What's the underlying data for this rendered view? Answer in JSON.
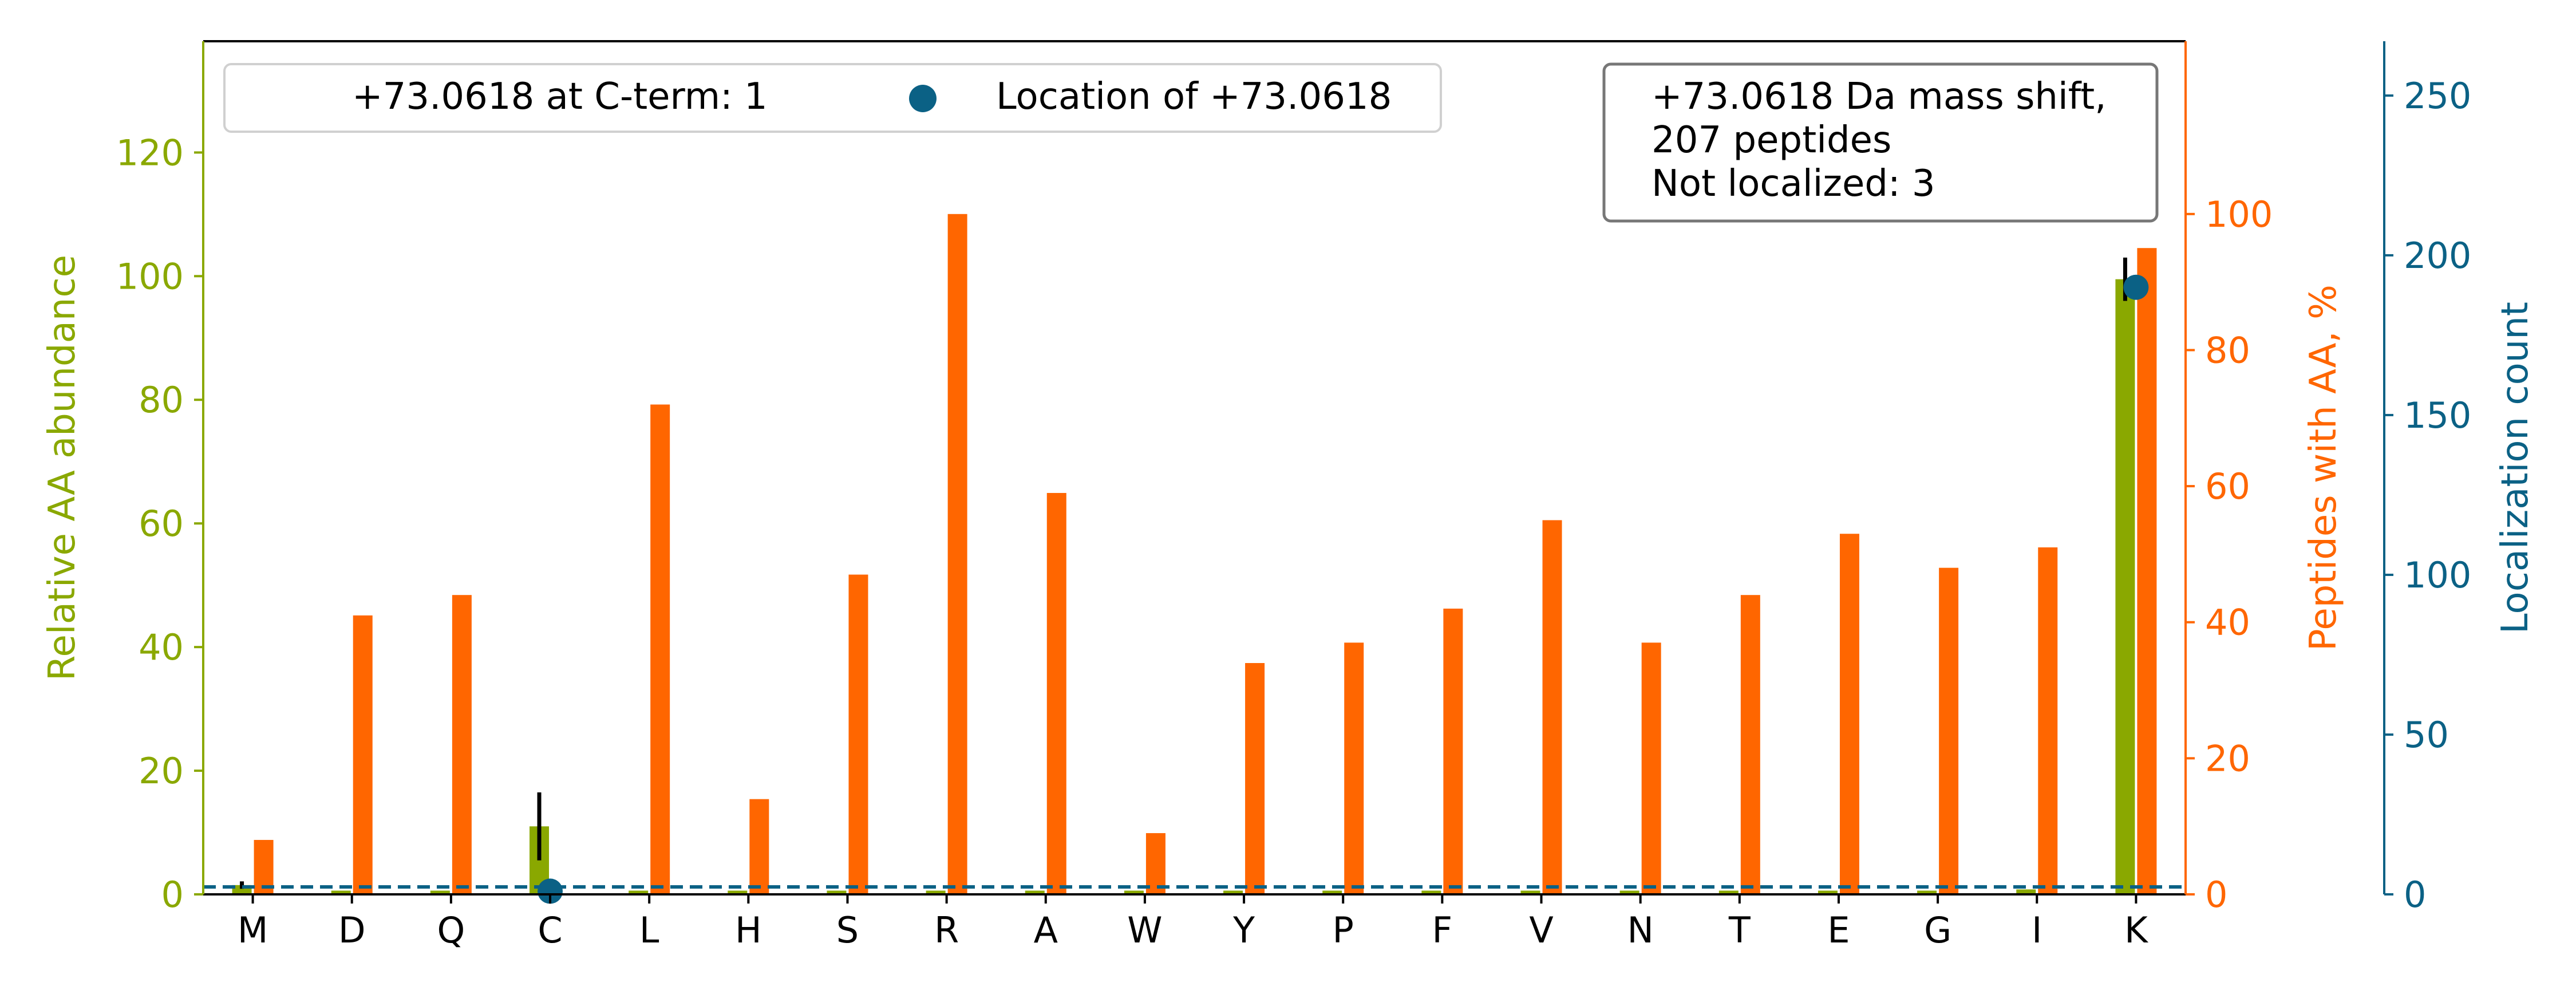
{
  "chart_data": {
    "type": "bar",
    "categories": [
      "M",
      "D",
      "Q",
      "C",
      "L",
      "H",
      "S",
      "R",
      "A",
      "W",
      "Y",
      "P",
      "F",
      "V",
      "N",
      "T",
      "E",
      "G",
      "I",
      "K"
    ],
    "left_axis": {
      "label": "Relative AA abundance",
      "ylim": [
        0,
        138
      ],
      "ticks": [
        0,
        20,
        40,
        60,
        80,
        100,
        120
      ],
      "color": "#8aa800"
    },
    "right_axis": {
      "label": "Peptides with AA, %",
      "ylim": [
        0,
        125.4
      ],
      "ticks": [
        0,
        20,
        40,
        60,
        80,
        100
      ],
      "color": "#ff6600"
    },
    "far_right_axis": {
      "label": "Localization count",
      "ylim": [
        0,
        267
      ],
      "ticks": [
        0,
        50,
        100,
        150,
        200,
        250
      ],
      "color": "#0b6185"
    },
    "series": [
      {
        "name": "",
        "axis": "left",
        "color": "#8aa800",
        "values": [
          1.5,
          0.6,
          0.6,
          11,
          0.6,
          0.6,
          0.6,
          0.6,
          0.6,
          0.6,
          0.6,
          0.6,
          0.6,
          0.6,
          0.6,
          0.6,
          0.6,
          0.6,
          0.8,
          99.5
        ],
        "errors": [
          0.6,
          0,
          0,
          5.5,
          0,
          0,
          0,
          0,
          0,
          0,
          0,
          0,
          0,
          0,
          0,
          0,
          0,
          0,
          0,
          3.5
        ]
      },
      {
        "name": "",
        "axis": "right",
        "color": "#ff6600",
        "values": [
          8,
          41,
          44,
          0,
          72,
          14,
          47,
          100,
          59,
          9,
          34,
          37,
          42,
          55,
          37,
          44,
          53,
          48,
          51,
          95
        ]
      },
      {
        "name": "Location of +73.0618",
        "axis": "far_right",
        "color": "#0b6185",
        "type": "scatter",
        "points": [
          {
            "category": "C",
            "value": 1
          },
          {
            "category": "K",
            "value": 190
          }
        ]
      }
    ],
    "reference_line": {
      "axis": "left",
      "value": 1.2,
      "style": "dashed",
      "color": "#0b6185"
    },
    "legend": {
      "placement": "top-left",
      "entries": [
        {
          "label": "+73.0618 at C-term: 1",
          "marker": "none"
        },
        {
          "label": "Location of +73.0618",
          "marker": "circle",
          "color": "#0b6185"
        }
      ]
    },
    "info_box": {
      "placement": "top-right",
      "lines": [
        "+73.0618 Da mass shift,",
        "207 peptides",
        "Not localized: 3"
      ]
    }
  }
}
